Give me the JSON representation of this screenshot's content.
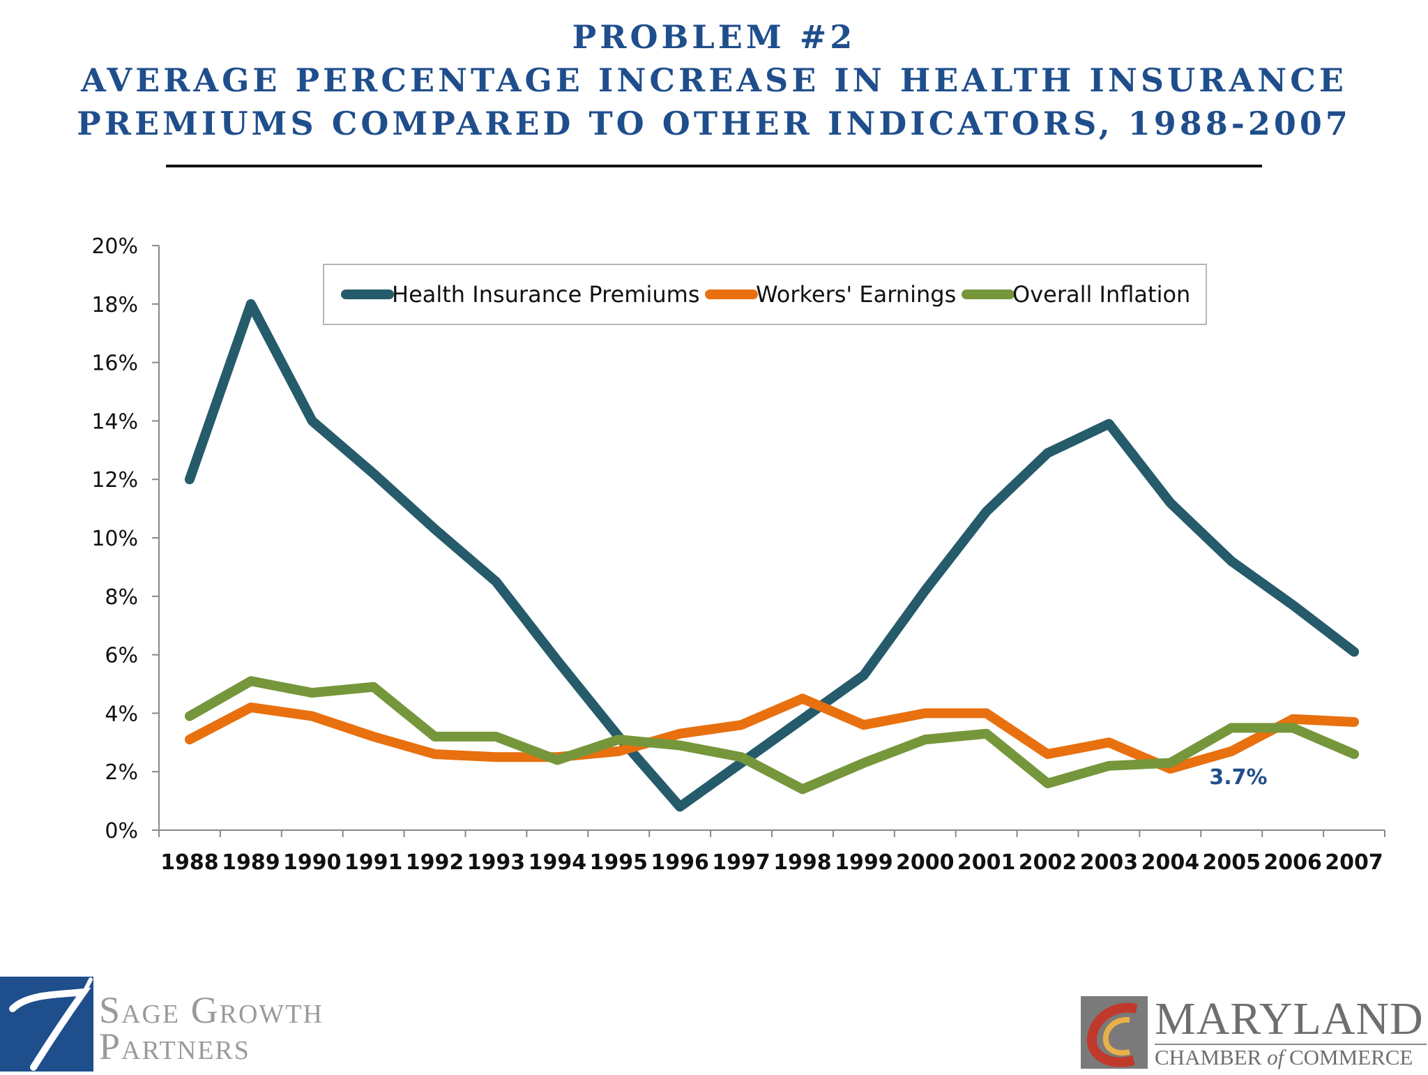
{
  "header": {
    "title_line1": "PROBLEM #2",
    "title_line2": "AVERAGE PERCENTAGE INCREASE IN HEALTH INSURANCE",
    "title_line3": "PREMIUMS COMPARED TO OTHER INDICATORS, 1988-2007"
  },
  "chart_data": {
    "type": "line",
    "x": [
      "1988",
      "1989",
      "1990",
      "1991",
      "1992",
      "1993",
      "1994",
      "1995",
      "1996",
      "1997",
      "1998",
      "1999",
      "2000",
      "2001",
      "2002",
      "2003",
      "2004",
      "2005",
      "2006",
      "2007"
    ],
    "ylim": [
      0,
      20
    ],
    "yticks": [
      0,
      2,
      4,
      6,
      8,
      10,
      12,
      14,
      16,
      18,
      20
    ],
    "ytick_labels": [
      "0%",
      "2%",
      "4%",
      "6%",
      "8%",
      "10%",
      "12%",
      "14%",
      "16%",
      "18%",
      "20%"
    ],
    "grid": false,
    "legend_position": "top",
    "series": [
      {
        "name": "Health Insurance Premiums",
        "color": "#255b6b",
        "values": [
          12.0,
          18.0,
          14.0,
          12.2,
          10.3,
          8.5,
          5.8,
          3.2,
          0.8,
          2.3,
          3.8,
          5.3,
          8.2,
          10.9,
          12.9,
          13.9,
          11.2,
          9.2,
          7.7,
          6.1
        ]
      },
      {
        "name": "Workers' Earnings",
        "color": "#e8700e",
        "values": [
          3.1,
          4.2,
          3.9,
          3.2,
          2.6,
          2.5,
          2.5,
          2.7,
          3.3,
          3.6,
          4.5,
          3.6,
          4.0,
          4.0,
          2.6,
          3.0,
          2.1,
          2.7,
          3.8,
          3.7
        ]
      },
      {
        "name": "Overall Inflation",
        "color": "#76963b",
        "values": [
          3.9,
          5.1,
          4.7,
          4.9,
          3.2,
          3.2,
          2.4,
          3.1,
          2.9,
          2.5,
          1.4,
          2.3,
          3.1,
          3.3,
          1.6,
          2.2,
          2.3,
          3.5,
          3.5,
          2.6
        ]
      }
    ],
    "annotation": {
      "text": "3.7%",
      "color": "#1f4e8c"
    }
  },
  "logos": {
    "left_line1": "Sage Growth",
    "left_line2": "Partners",
    "right_name": "MARYLAND",
    "right_sub_a": "CHAMBER ",
    "right_sub_b": "of",
    "right_sub_c": " COMMERCE"
  }
}
